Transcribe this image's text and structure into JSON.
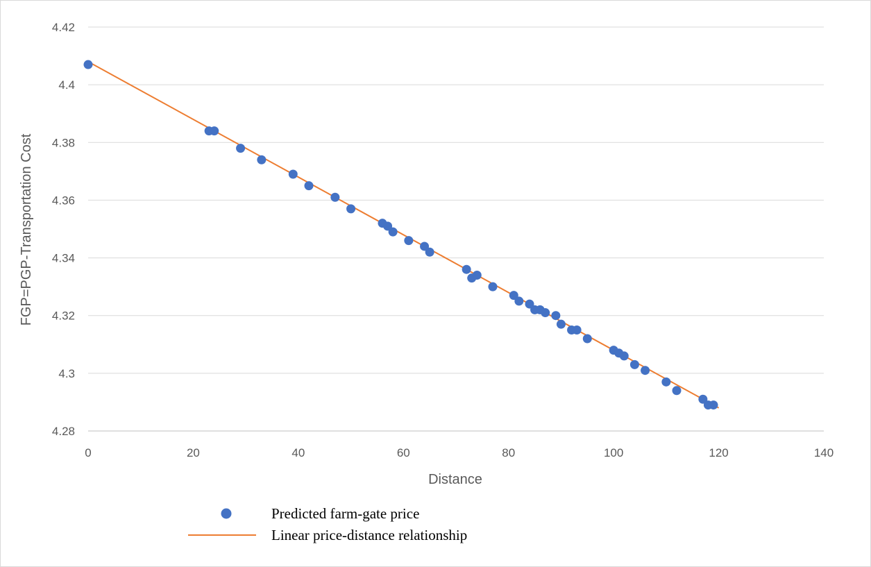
{
  "chart_data": {
    "type": "scatter",
    "title": "",
    "xlabel": "Distance",
    "ylabel": "FGP=PGP-Transportation Cost",
    "xlim": [
      0,
      140
    ],
    "ylim": [
      4.28,
      4.42
    ],
    "x_ticks": [
      0,
      20,
      40,
      60,
      80,
      100,
      120,
      140
    ],
    "x_tick_labels": [
      "0",
      "20",
      "40",
      "60",
      "80",
      "100",
      "120",
      "140"
    ],
    "y_ticks": [
      4.28,
      4.3,
      4.32,
      4.34,
      4.36,
      4.38,
      4.4,
      4.42
    ],
    "y_tick_labels": [
      "4.28",
      "4.3",
      "4.32",
      "4.34",
      "4.36",
      "4.38",
      "4.4",
      "4.42"
    ],
    "grid": "horizontal",
    "legend_position": "bottom",
    "series": [
      {
        "name": "Predicted farm-gate price",
        "type": "scatter",
        "color": "#4472c4",
        "points": [
          [
            0,
            4.407
          ],
          [
            23,
            4.384
          ],
          [
            24,
            4.384
          ],
          [
            29,
            4.378
          ],
          [
            33,
            4.374
          ],
          [
            39,
            4.369
          ],
          [
            42,
            4.365
          ],
          [
            47,
            4.361
          ],
          [
            50,
            4.357
          ],
          [
            56,
            4.352
          ],
          [
            57,
            4.351
          ],
          [
            58,
            4.349
          ],
          [
            61,
            4.346
          ],
          [
            64,
            4.344
          ],
          [
            65,
            4.342
          ],
          [
            72,
            4.336
          ],
          [
            73,
            4.333
          ],
          [
            74,
            4.334
          ],
          [
            77,
            4.33
          ],
          [
            81,
            4.327
          ],
          [
            82,
            4.325
          ],
          [
            84,
            4.324
          ],
          [
            85,
            4.322
          ],
          [
            86,
            4.322
          ],
          [
            87,
            4.321
          ],
          [
            89,
            4.32
          ],
          [
            90,
            4.317
          ],
          [
            92,
            4.315
          ],
          [
            93,
            4.315
          ],
          [
            95,
            4.312
          ],
          [
            100,
            4.308
          ],
          [
            101,
            4.307
          ],
          [
            102,
            4.306
          ],
          [
            104,
            4.303
          ],
          [
            106,
            4.301
          ],
          [
            110,
            4.297
          ],
          [
            112,
            4.294
          ],
          [
            117,
            4.291
          ],
          [
            118,
            4.289
          ],
          [
            119,
            4.289
          ]
        ]
      },
      {
        "name": "Linear price-distance relationship",
        "type": "line",
        "color": "#ed7d31",
        "points": [
          [
            0,
            4.408
          ],
          [
            120,
            4.288
          ]
        ]
      }
    ]
  }
}
